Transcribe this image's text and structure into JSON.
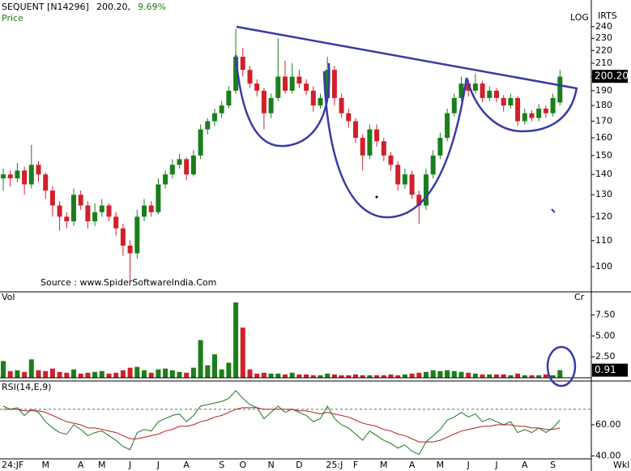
{
  "chart_data": [
    {
      "type": "candlestick",
      "title": "SEQUENT [N14296]",
      "price_text": "200.20,",
      "change_text": "9.69%",
      "panel_label": "Price",
      "scale_label": "LOG",
      "corner_label": "IRTS",
      "source": "Source : www.SpiderSoftwareIndia.Com",
      "log_scale": true,
      "up_color": "#1a7f1a",
      "down_color": "#d0202a",
      "ylim": [
        92.6,
        253
      ],
      "yticks": [
        100,
        110,
        120,
        130,
        140,
        150,
        160,
        170,
        180,
        190,
        200,
        210,
        220,
        230,
        240
      ],
      "last_label": {
        "value": 200.2,
        "label": "200.20"
      },
      "ohlc": [
        [
          138,
          143,
          132,
          140
        ],
        [
          140,
          142,
          134,
          138
        ],
        [
          138,
          146,
          136,
          142
        ],
        [
          142,
          144,
          130,
          135
        ],
        [
          135,
          156,
          133,
          145
        ],
        [
          145,
          147,
          136,
          140
        ],
        [
          140,
          141,
          128,
          132
        ],
        [
          132,
          134,
          120,
          125
        ],
        [
          125,
          127,
          114,
          120
        ],
        [
          120,
          122,
          115,
          118
        ],
        [
          118,
          133,
          116,
          130
        ],
        [
          130,
          132,
          123,
          125
        ],
        [
          125,
          127,
          115,
          118
        ],
        [
          118,
          126,
          116,
          122
        ],
        [
          122,
          128,
          120,
          125
        ],
        [
          125,
          126,
          118,
          120
        ],
        [
          120,
          122,
          112,
          115
        ],
        [
          115,
          117,
          104,
          108
        ],
        [
          108,
          110,
          95,
          105
        ],
        [
          105,
          123,
          103,
          120
        ],
        [
          120,
          128,
          118,
          125
        ],
        [
          125,
          127,
          120,
          122
        ],
        [
          122,
          138,
          121,
          135
        ],
        [
          135,
          142,
          133,
          140
        ],
        [
          140,
          148,
          138,
          145
        ],
        [
          145,
          151,
          143,
          148
        ],
        [
          148,
          149,
          137,
          140
        ],
        [
          140,
          153,
          139,
          150
        ],
        [
          150,
          168,
          148,
          165
        ],
        [
          165,
          172,
          162,
          170
        ],
        [
          170,
          178,
          167,
          175
        ],
        [
          175,
          183,
          172,
          180
        ],
        [
          180,
          193,
          178,
          190
        ],
        [
          190,
          238,
          188,
          215
        ],
        [
          215,
          222,
          200,
          205
        ],
        [
          205,
          208,
          192,
          195
        ],
        [
          195,
          198,
          186,
          190
        ],
        [
          190,
          192,
          165,
          175
        ],
        [
          175,
          188,
          172,
          185
        ],
        [
          185,
          230,
          183,
          200
        ],
        [
          200,
          212,
          188,
          190
        ],
        [
          190,
          210,
          188,
          200
        ],
        [
          200,
          205,
          192,
          195
        ],
        [
          195,
          198,
          187,
          190
        ],
        [
          190,
          193,
          176,
          180
        ],
        [
          180,
          188,
          178,
          185
        ],
        [
          185,
          215,
          183,
          205
        ],
        [
          205,
          208,
          180,
          185
        ],
        [
          185,
          188,
          172,
          175
        ],
        [
          175,
          178,
          166,
          170
        ],
        [
          170,
          172,
          157,
          160
        ],
        [
          160,
          162,
          142,
          150
        ],
        [
          150,
          168,
          148,
          165
        ],
        [
          165,
          168,
          155,
          158
        ],
        [
          158,
          160,
          147,
          150
        ],
        [
          150,
          152,
          142,
          145
        ],
        [
          145,
          147,
          132,
          135
        ],
        [
          135,
          143,
          133,
          140
        ],
        [
          140,
          142,
          128,
          130
        ],
        [
          130,
          132,
          117,
          125
        ],
        [
          125,
          143,
          123,
          140
        ],
        [
          140,
          153,
          138,
          150
        ],
        [
          150,
          163,
          148,
          160
        ],
        [
          160,
          178,
          158,
          175
        ],
        [
          175,
          188,
          173,
          185
        ],
        [
          185,
          200,
          183,
          195
        ],
        [
          195,
          198,
          186,
          190
        ],
        [
          190,
          202,
          188,
          195
        ],
        [
          195,
          197,
          182,
          185
        ],
        [
          185,
          193,
          183,
          190
        ],
        [
          190,
          192,
          182,
          185
        ],
        [
          185,
          187,
          176,
          180
        ],
        [
          180,
          188,
          178,
          185
        ],
        [
          185,
          186,
          167,
          170
        ],
        [
          170,
          178,
          168,
          175
        ],
        [
          175,
          177,
          170,
          172
        ],
        [
          172,
          181,
          170,
          178
        ],
        [
          178,
          180,
          172,
          175
        ],
        [
          175,
          188,
          173,
          185
        ],
        [
          182,
          205,
          180,
          200
        ]
      ]
    },
    {
      "type": "bar",
      "panel_label": "Vol",
      "unit_label": "Cr",
      "ylim": [
        0,
        9.3
      ],
      "yticks": [
        {
          "value": 2.5,
          "label": "2.50"
        },
        {
          "value": 5,
          "label": "5.00"
        },
        {
          "value": 7.5,
          "label": "7.50"
        }
      ],
      "last_label": 0.91,
      "values": [
        2.0,
        0.8,
        0.9,
        0.7,
        2.2,
        0.9,
        0.8,
        1.1,
        0.7,
        0.6,
        1.0,
        0.5,
        0.6,
        0.7,
        0.8,
        0.5,
        0.6,
        0.9,
        1.2,
        1.3,
        0.9,
        0.6,
        1.0,
        1.1,
        0.9,
        0.7,
        0.6,
        1.2,
        4.5,
        1.5,
        2.8,
        1.0,
        1.8,
        9.0,
        6.0,
        1.0,
        0.5,
        0.6,
        0.5,
        0.5,
        0.4,
        0.6,
        0.4,
        0.4,
        0.3,
        0.3,
        0.5,
        0.4,
        0.3,
        0.3,
        0.4,
        0.3,
        0.3,
        0.3,
        0.3,
        0.4,
        0.3,
        0.4,
        0.5,
        0.6,
        0.7,
        0.9,
        0.8,
        0.9,
        0.8,
        0.7,
        0.6,
        0.5,
        0.4,
        0.4,
        0.4,
        0.4,
        0.3,
        0.5,
        0.3,
        0.3,
        0.3,
        0.4,
        0.3,
        0.91
      ]
    },
    {
      "type": "line",
      "panel_label": "RSI(14,E,9)",
      "period_label": "Wkl",
      "ylim": [
        36,
        84
      ],
      "yticks": [
        {
          "value": 40,
          "label": "40.00"
        },
        {
          "value": 60,
          "label": "60.00"
        }
      ],
      "reference_line": 70,
      "categories": [
        "24:JF",
        null,
        null,
        null,
        null,
        null,
        "M",
        null,
        null,
        null,
        null,
        "A",
        null,
        null,
        "M",
        null,
        null,
        null,
        "J",
        null,
        null,
        null,
        "J",
        null,
        null,
        null,
        "A",
        null,
        null,
        null,
        null,
        "S",
        null,
        null,
        "O",
        null,
        null,
        null,
        "N",
        null,
        null,
        null,
        "D",
        null,
        null,
        null,
        null,
        "25:J",
        null,
        null,
        "F",
        null,
        null,
        null,
        "M",
        null,
        null,
        null,
        "A",
        null,
        null,
        null,
        "M",
        null,
        null,
        null,
        "J",
        null,
        null,
        null,
        "J",
        null,
        null,
        null,
        "A",
        null,
        null,
        null,
        "S",
        null
      ],
      "series": [
        {
          "color": "#1a7a1a",
          "values": [
            72,
            70,
            71,
            66,
            70,
            68,
            62,
            58,
            55,
            54,
            60,
            57,
            53,
            55,
            56,
            53,
            50,
            46,
            44,
            55,
            57,
            56,
            62,
            64,
            66,
            67,
            62,
            66,
            72,
            73,
            74,
            75,
            77,
            82,
            77,
            73,
            71,
            64,
            68,
            72,
            68,
            70,
            68,
            66,
            62,
            64,
            72,
            64,
            60,
            58,
            54,
            50,
            56,
            53,
            50,
            48,
            45,
            47,
            43,
            41,
            49,
            53,
            57,
            63,
            65,
            68,
            65,
            67,
            62,
            64,
            62,
            60,
            62,
            55,
            57,
            55,
            58,
            55,
            58,
            63
          ]
        },
        {
          "color": "#b02020",
          "values": [
            70,
            70,
            70,
            69,
            69,
            69,
            68,
            66,
            64,
            62,
            61,
            60,
            58,
            58,
            57,
            56,
            55,
            53,
            51,
            51,
            52,
            53,
            54,
            56,
            57,
            59,
            59,
            60,
            62,
            63,
            65,
            66,
            68,
            70,
            71,
            71,
            71,
            70,
            70,
            70,
            70,
            70,
            69,
            69,
            68,
            67,
            68,
            67,
            66,
            65,
            63,
            61,
            60,
            59,
            57,
            56,
            54,
            53,
            51,
            49,
            49,
            49,
            50,
            52,
            54,
            56,
            57,
            58,
            59,
            59,
            60,
            60,
            60,
            59,
            59,
            58,
            58,
            57,
            57,
            58
          ]
        }
      ]
    }
  ]
}
